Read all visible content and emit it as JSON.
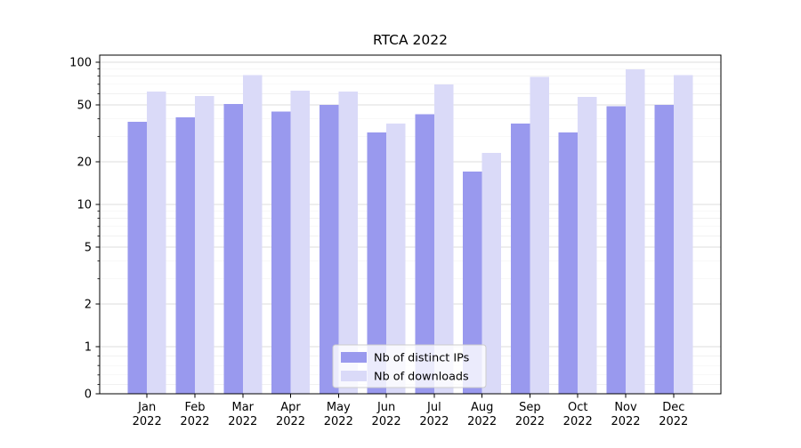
{
  "chart_data": {
    "type": "bar",
    "title": "RTCA 2022",
    "year": "2022",
    "months": [
      "Jan",
      "Feb",
      "Mar",
      "Apr",
      "May",
      "Jun",
      "Jul",
      "Aug",
      "Sep",
      "Oct",
      "Nov",
      "Dec"
    ],
    "series": [
      {
        "name": "Nb of distinct IPs",
        "color": "#9999ee",
        "values": [
          38,
          41,
          51,
          45,
          50,
          32,
          43,
          17,
          37,
          32,
          49,
          50
        ]
      },
      {
        "name": "Nb of downloads",
        "color": "#dadaf8",
        "values": [
          62,
          58,
          81,
          63,
          62,
          37,
          70,
          23,
          79,
          57,
          89,
          81
        ]
      }
    ],
    "yaxis": {
      "scale": "symlog",
      "ticks": [
        0,
        1,
        2,
        5,
        10,
        20,
        50,
        100
      ],
      "minor_ticks": [
        0.2,
        0.4,
        0.6,
        0.8,
        3,
        4,
        6,
        7,
        8,
        9,
        30,
        40,
        60,
        70,
        80,
        90
      ],
      "ylim": [
        0,
        100
      ]
    },
    "xlabel": "",
    "ylabel": "",
    "grid": true,
    "legend": {
      "position": "lower center"
    },
    "colors": {
      "grid_major": "#dcdcdc",
      "grid_minor": "#f0f0f0",
      "axis": "#000000",
      "legend_border": "#cccccc",
      "background": "#ffffff"
    }
  }
}
